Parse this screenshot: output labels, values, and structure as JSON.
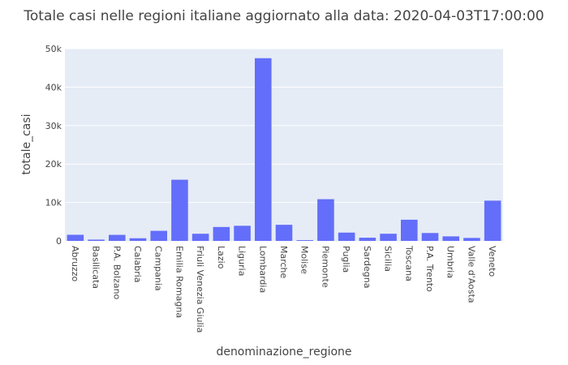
{
  "chart_data": {
    "type": "bar",
    "title": "Totale casi nelle regioni italiane aggiornato alla data: 2020-04-03T17:00:00",
    "xlabel": "denominazione_regione",
    "ylabel": "totale_casi",
    "ylim": [
      0,
      50000
    ],
    "yticks": [
      {
        "value": 0,
        "label": "0"
      },
      {
        "value": 10000,
        "label": "10k"
      },
      {
        "value": 20000,
        "label": "20k"
      },
      {
        "value": 30000,
        "label": "30k"
      },
      {
        "value": 40000,
        "label": "40k"
      },
      {
        "value": 50000,
        "label": "50k"
      }
    ],
    "grid": true,
    "bar_color": "#636efa",
    "plot_background": "#e5ecf6",
    "categories": [
      "Abruzzo",
      "Basilicata",
      "P.A. Bolzano",
      "Calabria",
      "Campania",
      "Emilia Romagna",
      "Friuli Venezia Giulia",
      "Lazio",
      "Liguria",
      "Lombardia",
      "Marche",
      "Molise",
      "Piemonte",
      "Puglia",
      "Sardegna",
      "Sicilia",
      "Toscana",
      "P.A. Trento",
      "Umbria",
      "Valle d'Aosta",
      "Veneto"
    ],
    "values": [
      1590,
      330,
      1570,
      690,
      2620,
      15910,
      1860,
      3620,
      3930,
      47520,
      4190,
      200,
      10850,
      2160,
      830,
      1860,
      5510,
      2050,
      1180,
      770,
      10470
    ]
  }
}
